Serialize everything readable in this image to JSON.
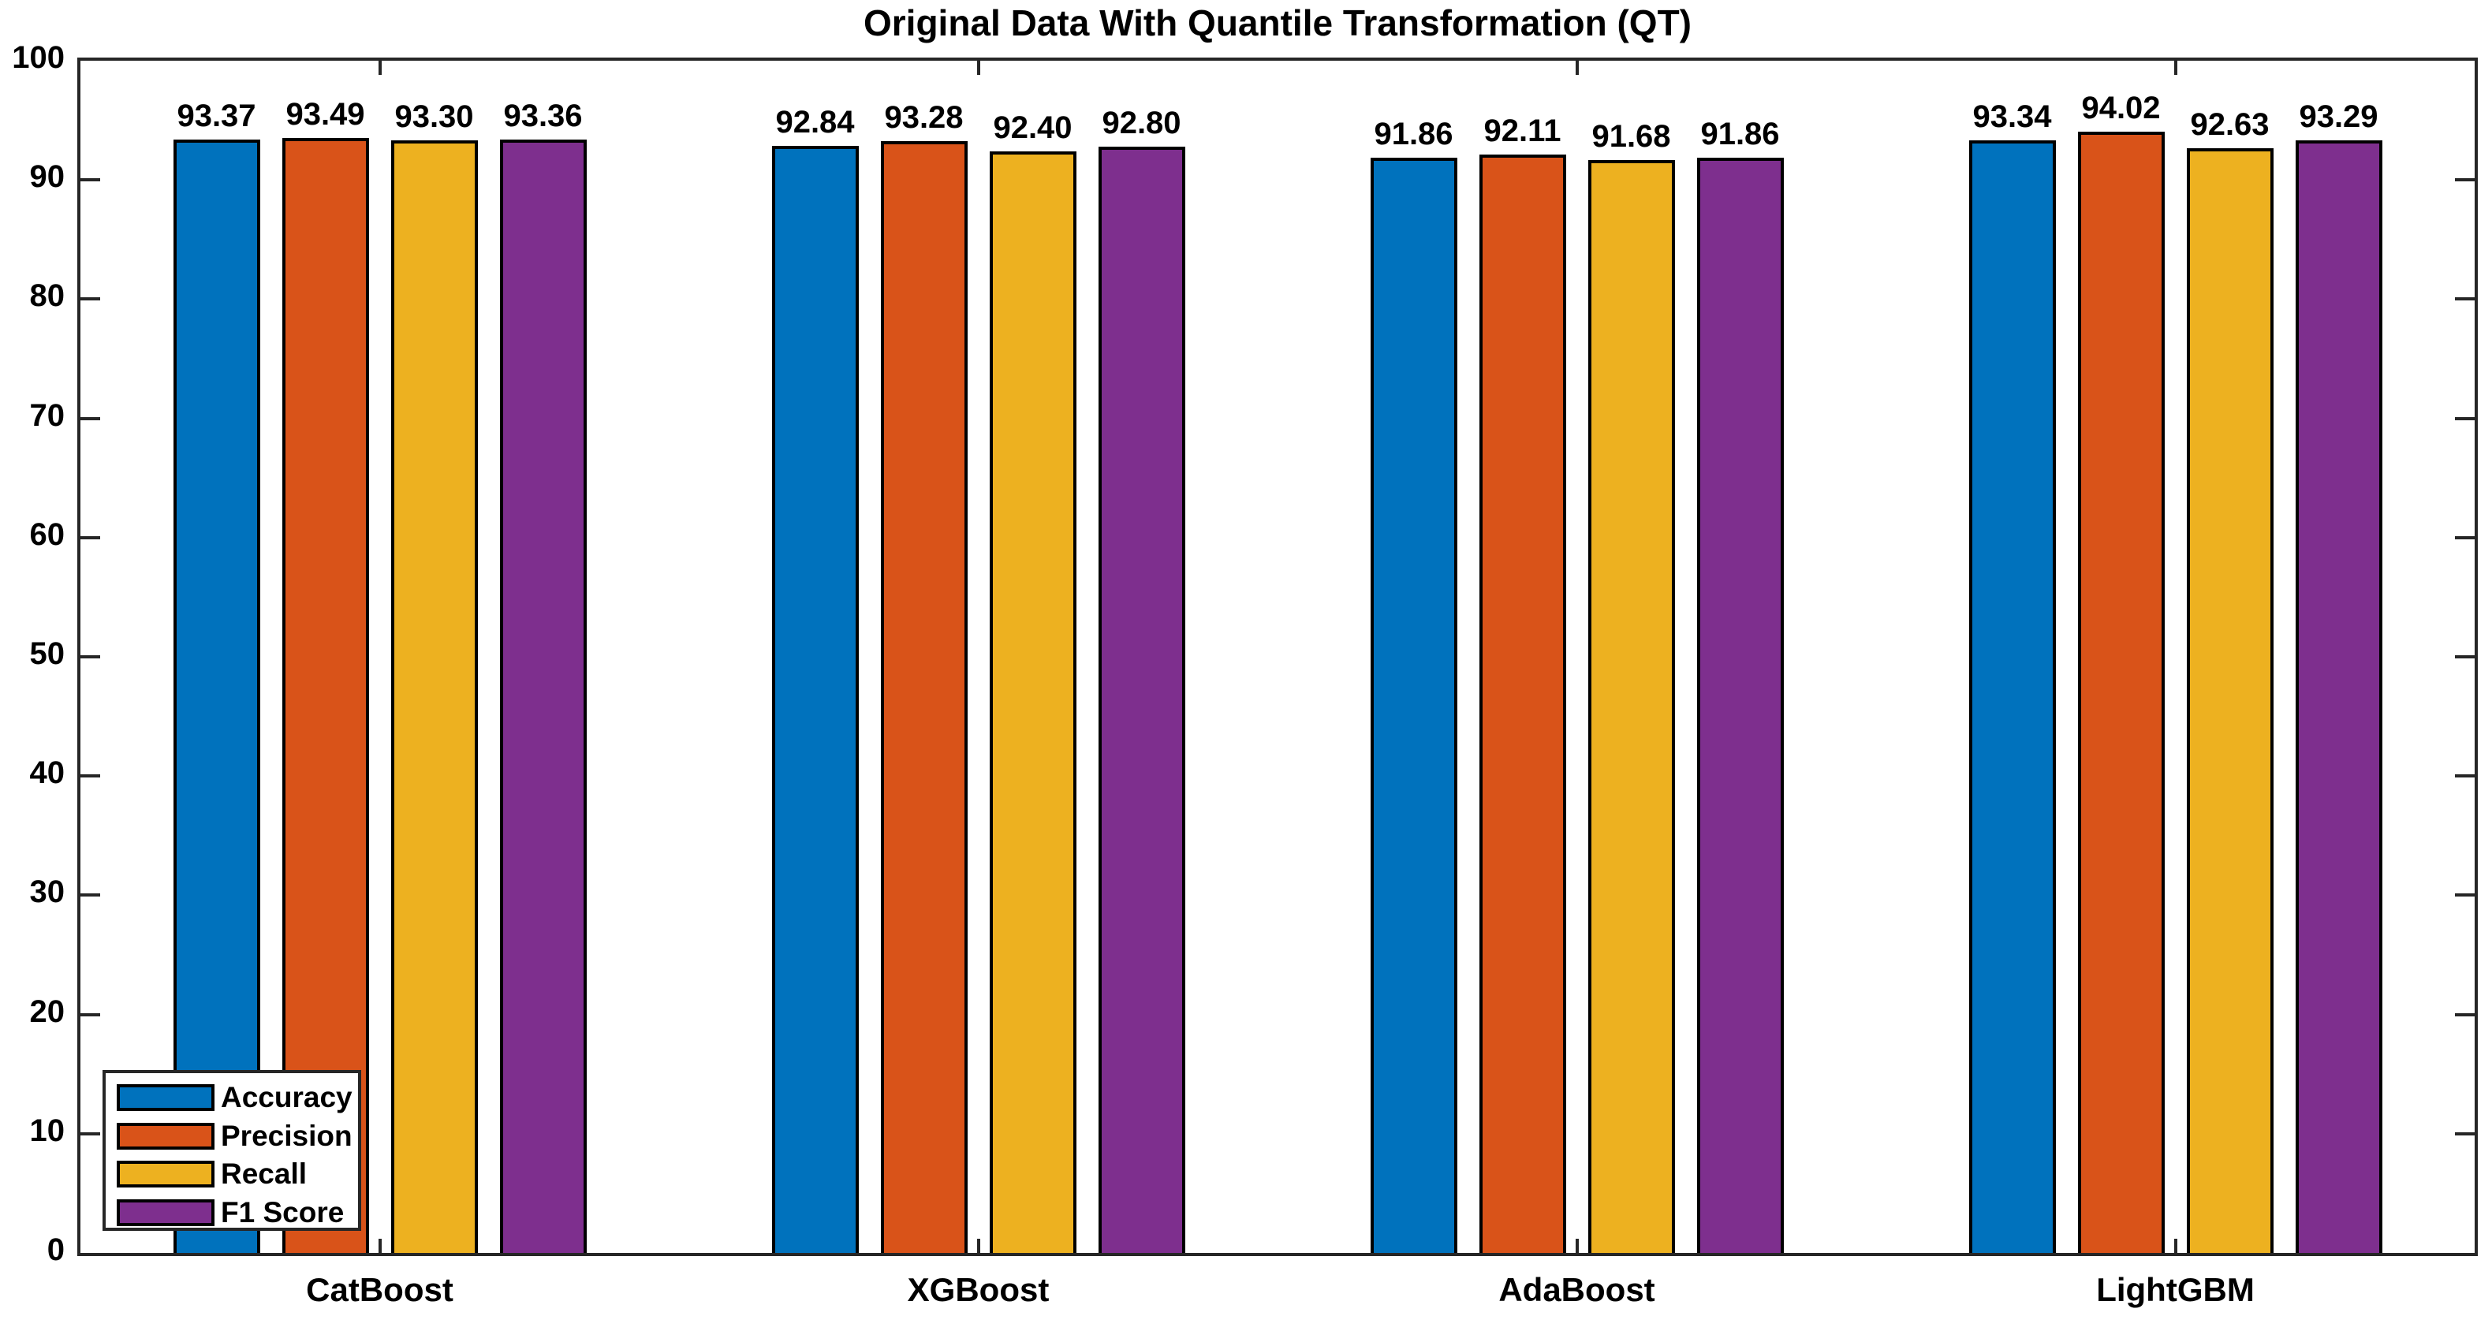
{
  "figure": {
    "title": "Original Data With Quantile Transformation (QT)"
  },
  "chart_data": {
    "type": "bar",
    "title": "Original Data With Quantile Transformation (QT)",
    "categories": [
      "CatBoost",
      "XGBoost",
      "AdaBoost",
      "LightGBM"
    ],
    "series": [
      {
        "name": "Accuracy",
        "color": "#0072BD",
        "values": [
          93.37,
          92.84,
          91.86,
          93.34
        ]
      },
      {
        "name": "Precision",
        "color": "#D95319",
        "values": [
          93.49,
          93.28,
          92.11,
          94.02
        ]
      },
      {
        "name": "Recall",
        "color": "#EDB120",
        "values": [
          93.3,
          92.4,
          91.68,
          92.63
        ]
      },
      {
        "name": "F1 Score",
        "color": "#7E2F8E",
        "values": [
          93.36,
          92.8,
          91.86,
          93.29
        ]
      }
    ],
    "xlabel": "",
    "ylabel": "",
    "ylim": [
      0,
      100
    ],
    "ytick_step": 10,
    "ytick_labels": [
      "0",
      "10",
      "20",
      "30",
      "40",
      "50",
      "60",
      "70",
      "80",
      "90",
      "100"
    ],
    "value_label_decimals": 2,
    "grid": false,
    "legend": {
      "position": "bottom-left",
      "entries": [
        "Accuracy",
        "Precision",
        "Recall",
        "F1 Score"
      ]
    },
    "bar_edge_color": "#000000",
    "axis_color": "#262626",
    "text_color": "#000000"
  }
}
